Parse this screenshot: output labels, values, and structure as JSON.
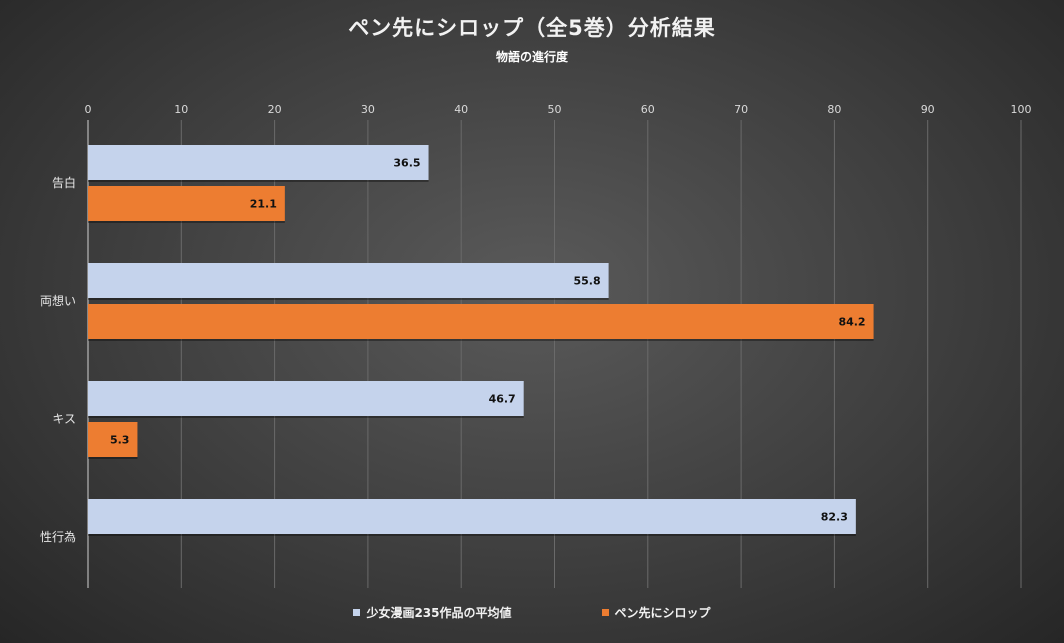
{
  "chart_data": {
    "type": "bar",
    "orientation": "horizontal",
    "title": "ペン先にシロップ（全5巻）分析結果",
    "subtitle": "物語の進行度",
    "xlim": [
      0,
      100
    ],
    "x_ticks": [
      "0",
      "10",
      "20",
      "30",
      "40",
      "50",
      "60",
      "70",
      "80",
      "90",
      "100"
    ],
    "categories": [
      "告白",
      "両想い",
      "キス",
      "性行為"
    ],
    "series": [
      {
        "name": "少女漫画235作品の平均値",
        "color": "#c5d3ec",
        "values": [
          36.5,
          55.8,
          46.7,
          82.3
        ]
      },
      {
        "name": "ペン先にシロップ",
        "color": "#ed7d31",
        "values": [
          21.1,
          84.2,
          5.3,
          null
        ]
      }
    ],
    "grid": true,
    "legend_position": "bottom"
  }
}
